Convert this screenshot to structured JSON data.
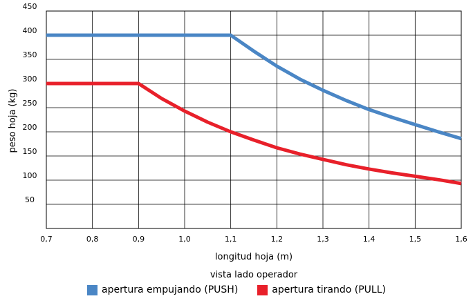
{
  "chart_data": {
    "type": "line",
    "xlabel": "longitud hoja (m)",
    "ylabel": "peso hoja (kg)",
    "caption": "vista lado operador",
    "xlim": [
      0.7,
      1.6
    ],
    "ylim": [
      0,
      450
    ],
    "x_ticks": [
      "0,7",
      "0,8",
      "0,9",
      "1,0",
      "1,1",
      "1,2",
      "1,3",
      "1,4",
      "1,5",
      "1,6"
    ],
    "x_tick_values": [
      0.7,
      0.8,
      0.9,
      1.0,
      1.1,
      1.2,
      1.3,
      1.4,
      1.5,
      1.6
    ],
    "y_ticks": [
      "50",
      "100",
      "150",
      "200",
      "250",
      "300",
      "350",
      "400",
      "450"
    ],
    "y_tick_values": [
      50,
      100,
      150,
      200,
      250,
      300,
      350,
      400,
      450
    ],
    "grid": true,
    "legend_position": "bottom",
    "series": [
      {
        "name": "apertura empujando (PUSH)",
        "color": "#4a86c5",
        "x": [
          0.7,
          1.1,
          1.15,
          1.2,
          1.25,
          1.3,
          1.35,
          1.4,
          1.45,
          1.5,
          1.55,
          1.6
        ],
        "y": [
          400,
          400,
          367,
          336,
          309,
          286,
          265,
          246,
          230,
          215,
          200,
          186
        ]
      },
      {
        "name": "apertura tirando (PULL)",
        "color": "#e8202a",
        "x": [
          0.7,
          0.9,
          0.95,
          1.0,
          1.05,
          1.1,
          1.15,
          1.2,
          1.25,
          1.3,
          1.35,
          1.4,
          1.45,
          1.5,
          1.55,
          1.6
        ],
        "y": [
          300,
          300,
          269,
          243,
          220,
          200,
          183,
          167,
          154,
          143,
          132,
          123,
          115,
          108,
          101,
          93
        ]
      }
    ]
  }
}
